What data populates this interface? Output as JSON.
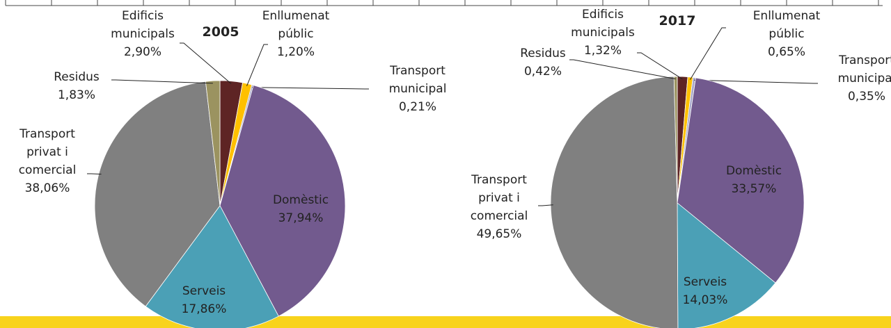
{
  "chart_data": [
    {
      "type": "pie",
      "title": "2005",
      "categories": [
        "Edificis\nmunicipals",
        "Enllumenat\npúblic",
        "Transport\nmunicipal",
        "Domèstic",
        "Serveis",
        "Transport\nprivat i\ncomercial",
        "Residus"
      ],
      "values": [
        2.9,
        1.2,
        0.21,
        37.94,
        17.86,
        38.06,
        1.83
      ],
      "value_labels": [
        "2,90%",
        "1,20%",
        "0,21%",
        "37,94%",
        "17,86%",
        "38,06%",
        "1,83%"
      ],
      "colors": [
        "#5e2424",
        "#ffc000",
        "#a9a9c9",
        "#725a8e",
        "#4ba0b6",
        "#808080",
        "#9b9360"
      ]
    },
    {
      "type": "pie",
      "title": "2017",
      "categories": [
        "Edificis\nmunicipals",
        "Enllumenat\npúblic",
        "Transport\nmunicipal",
        "Domèstic",
        "Serveis",
        "Transport\nprivat i\ncomercial",
        "Residus"
      ],
      "values": [
        1.32,
        0.65,
        0.35,
        33.57,
        14.03,
        49.65,
        0.42
      ],
      "value_labels": [
        "1,32%",
        "0,65%",
        "0,35%",
        "33,57%",
        "14,03%",
        "49,65%",
        "0,42%"
      ],
      "colors": [
        "#5e2424",
        "#ffc000",
        "#a9a9c9",
        "#725a8e",
        "#4ba0b6",
        "#808080",
        "#9b9360"
      ]
    }
  ]
}
